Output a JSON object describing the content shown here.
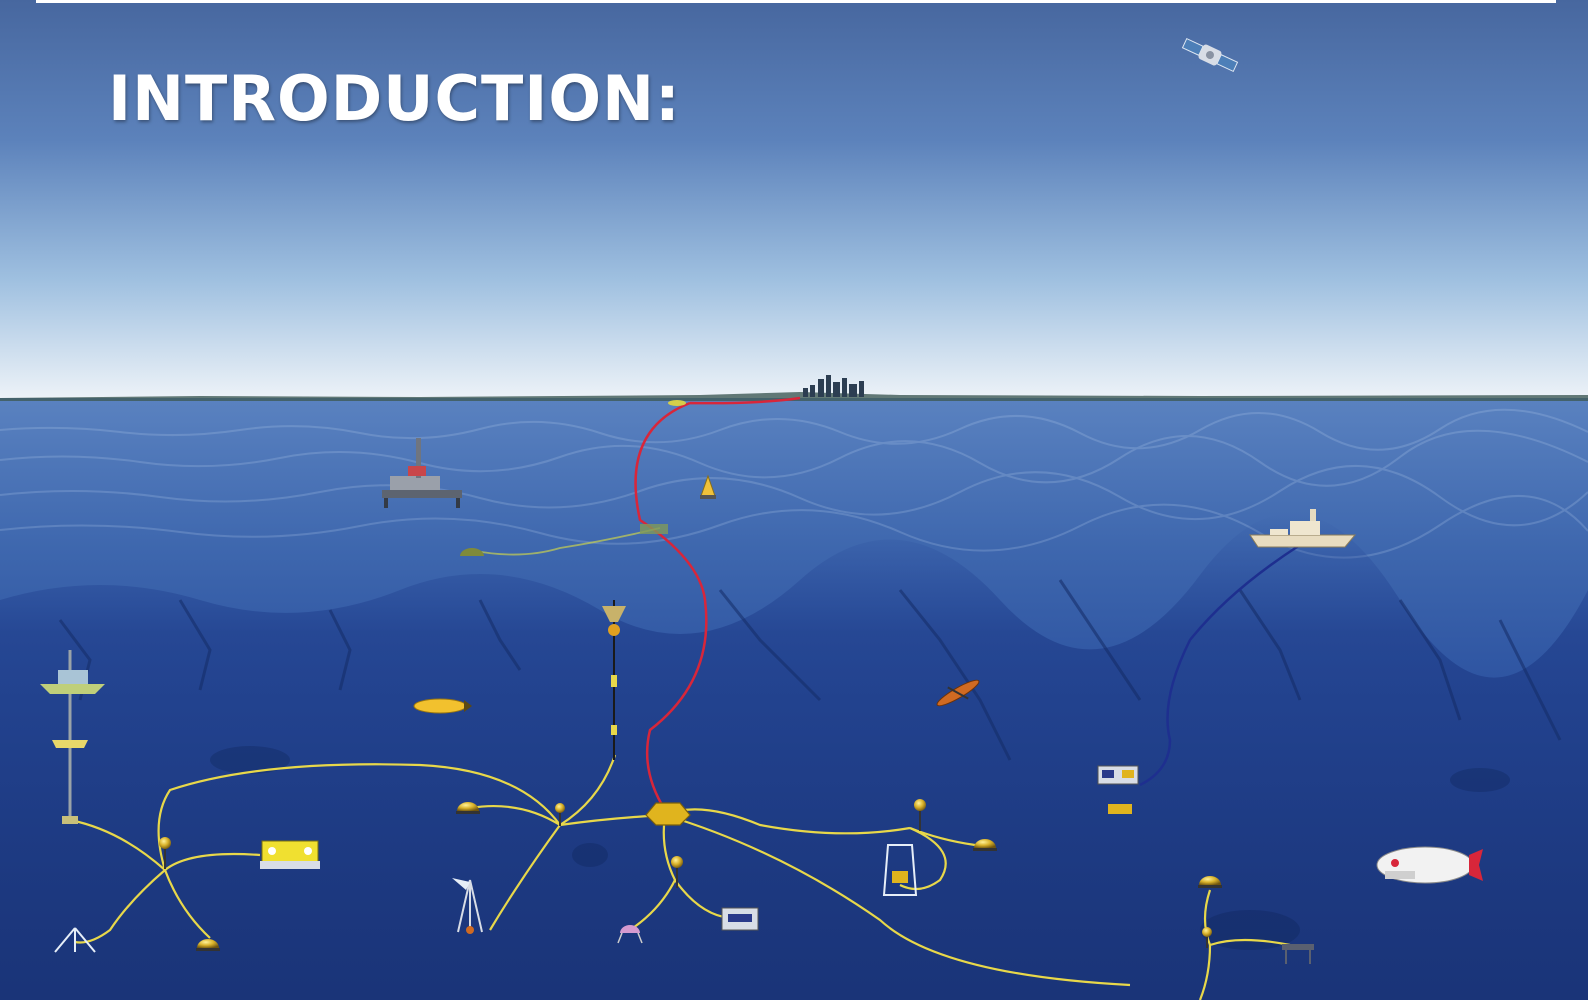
{
  "slide": {
    "title": "INTRODUCTION:"
  },
  "colors": {
    "sky_top": "#4a6ea8",
    "sky_horizon": "#eef3f8",
    "sea_surface": "#3d66ad",
    "sea_floor": "#1c3a82",
    "cable_yellow": "#e8d84a",
    "cable_red": "#d8263a",
    "cable_blue": "#1e2f8f",
    "node_gold": "#c9a21a"
  },
  "scene_objects": [
    "satellite-icon",
    "coastal-city",
    "oil-platform",
    "surface-buoy",
    "research-ship",
    "underwater-glider",
    "auv-yellow",
    "rov-yellow",
    "rov-tethered",
    "manned-submersible",
    "junction-box",
    "mooring-string",
    "seafloor-tripod",
    "sensor-node"
  ]
}
